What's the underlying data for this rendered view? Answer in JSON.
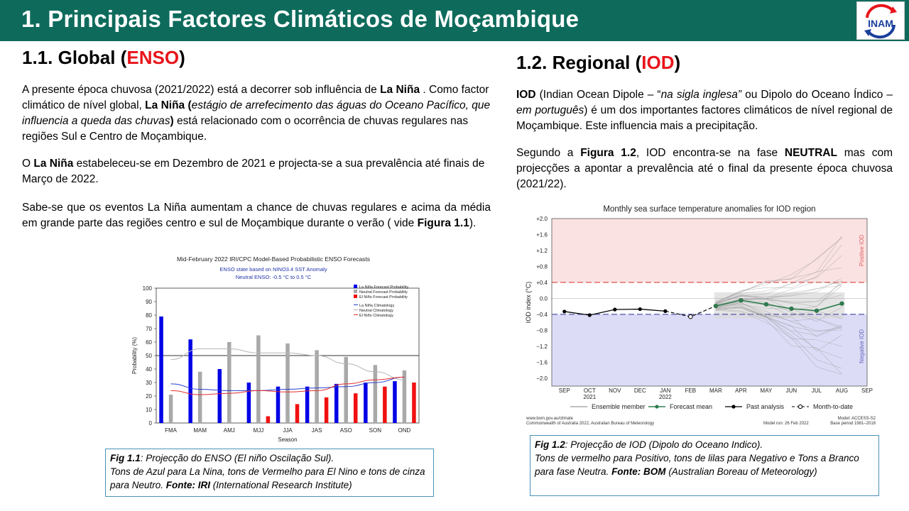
{
  "header": {
    "title": "1. Principais Factores Climáticos de Moçambique",
    "logo_text": "INAM",
    "bg_color": "#0e6b5c"
  },
  "global": {
    "heading_prefix": "1.1.  Global (",
    "heading_red": "ENSO",
    "heading_suffix": ")",
    "p1_a": "A presente época chuvosa (2021/2022) está a decorrer sob influência de ",
    "p1_b": "La Niña",
    "p1_c": " . Como factor climático de nível global, ",
    "p1_d": "La Niña (",
    "p1_e": "estágio de arrefecimento das águas do Oceano Pacífico, que influencia a queda das chuvas",
    "p1_f": ")",
    "p1_g": " está relacionado com o ocorrência de chuvas regulares nas regiões Sul e Centro de Moçambique.",
    "p2_a": " O ",
    "p2_b": "La Niña",
    "p2_c": "  estabeleceu-se em Dezembro de 2021 e projecta-se a sua prevalência até finais de Março de 2022.",
    "p3_a": "Sabe-se que os eventos La Niña aumentam a chance de chuvas regulares e acima da média em grande parte das regiões centro e sul de Moçambique durante o verão ( vide ",
    "p3_b": "Figura 1.1",
    "p3_c": ")."
  },
  "regional": {
    "heading_prefix": "1.2. Regional (",
    "heading_red": "IOD",
    "heading_suffix": ")",
    "p1_a": "IOD",
    "p1_b": " (Indian Ocean Dipole – “",
    "p1_c": "na sigla inglesa”",
    "p1_d": " ou Dipolo do Oceano Índico – ",
    "p1_e": "em português",
    "p1_f": ") é um dos importantes factores climáticos de nível regional de Moçambique. Este influencia mais a precipitação.",
    "p2_a": "Segundo a ",
    "p2_b": "Figura 1.2",
    "p2_c": ", IOD encontra-se na fase ",
    "p2_d": "NEUTRAL",
    "p2_e": " mas com projecções a apontar a prevalência até o final da presente época chuvosa (2021/22)."
  },
  "caption1": {
    "label": "Fig 1.1",
    "line1": ": Projecção do ENSO (El niño Oscilação Sul).",
    "line2": "Tons de Azul para La Nina, tons de Vermelho para El Nino e tons de cinza para Neutro. ",
    "source_label": "Fonte: IRI",
    "source_text": " (International Research Institute)"
  },
  "caption2": {
    "label": "Fig 1.2",
    "line1": ": Projecção de IOD (Dipolo do Oceano Indico).",
    "line2": "Tons de vermelho para Positivo, tons de lilas para Negativo e Tons a Branco para fase Neutra. ",
    "source_label": "Fonte: BOM",
    "source_text": " (Australian Boreau of Meteorology)"
  },
  "chart_data": [
    {
      "type": "bar",
      "title": "Mid-February 2022 IRI/CPC Model-Based Probabilistic ENSO Forecasts",
      "subtitle1": "ENSO state based on NINO3.4 SST Anomaly",
      "subtitle2": "Neutral ENSO: -0.5 °C to 0.5 °C",
      "xlabel": "Season",
      "ylabel": "Probability (%)",
      "ylim": [
        0,
        100
      ],
      "yticks": [
        0,
        10,
        20,
        30,
        40,
        50,
        60,
        70,
        80,
        90,
        100
      ],
      "reference_line": 50,
      "categories": [
        "FMA",
        "MAM",
        "AMJ",
        "MJJ",
        "JJA",
        "JAS",
        "ASO",
        "SON",
        "OND"
      ],
      "series": [
        {
          "name": "La Niña Forecast Probability",
          "color": "#0000e6",
          "values": [
            79,
            62,
            40,
            30,
            27,
            27,
            29,
            30,
            31
          ]
        },
        {
          "name": "Neutral Forecast Probability",
          "color": "#a9a9a9",
          "values": [
            21,
            38,
            60,
            65,
            59,
            54,
            49,
            43,
            39
          ]
        },
        {
          "name": "El Niño Forecast Probability",
          "color": "#f01010",
          "values": [
            0,
            0,
            0,
            5,
            14,
            19,
            22,
            27,
            30
          ]
        }
      ],
      "climatology": [
        {
          "name": "La Niña Climatology",
          "color": "#2a3fd1",
          "values": [
            29,
            25,
            24,
            24,
            25,
            26,
            27,
            30,
            34
          ]
        },
        {
          "name": "Neutral Climatology",
          "color": "#b5b5b5",
          "values": [
            47,
            55,
            55,
            52,
            52,
            50,
            44,
            38,
            32
          ]
        },
        {
          "name": "El Niño Climatology",
          "color": "#e53030",
          "values": [
            24,
            21,
            22,
            24,
            23,
            24,
            29,
            32,
            34
          ]
        }
      ]
    },
    {
      "type": "line",
      "title": "Monthly sea surface temperature anomalies for IOD region",
      "ylabel": "IOD index (°C)",
      "ylim": [
        -2.2,
        2.0
      ],
      "yticks": [
        "+2.0",
        "+1.6",
        "+1.2",
        "+0.8",
        "+0.4",
        "0.0",
        "−0.4",
        "−0.8",
        "−1.2",
        "−1.6",
        "−2.0"
      ],
      "ytick_values": [
        2.0,
        1.6,
        1.2,
        0.8,
        0.4,
        0.0,
        -0.4,
        -0.8,
        -1.2,
        -1.6,
        -2.0
      ],
      "months": [
        "SEP",
        "OCT",
        "NOV",
        "DEC",
        "JAN",
        "FEB",
        "MAR",
        "APR",
        "MAY",
        "JUN",
        "JUL",
        "AUG",
        "SEP"
      ],
      "year_labels": [
        {
          "month_index": 1,
          "label": "2021"
        },
        {
          "month_index": 4,
          "label": "2022"
        }
      ],
      "thresholds": [
        0.4,
        -0.4
      ],
      "positive_label": "Positive IOD",
      "negative_label": "Negative IOD",
      "past_analysis": [
        -0.33,
        -0.42,
        -0.28,
        -0.27,
        -0.32
      ],
      "month_to_date": -0.46,
      "forecast_mean": [
        -0.19,
        -0.05,
        -0.15,
        -0.26,
        -0.31,
        -0.13
      ],
      "legend": [
        "Ensemble member",
        "Forecast mean",
        "Past analysis",
        "Month-to-date"
      ],
      "footer_left1": "www.bom.gov.au/climate",
      "footer_left2": "Commonwealth of Australia 2022, Australian Bureau of Meteorology",
      "footer_mid": "Model run: 26 Feb 2022",
      "footer_right1": "Model: ACCESS-S2",
      "footer_right2": "Base period 1981–2018"
    }
  ]
}
